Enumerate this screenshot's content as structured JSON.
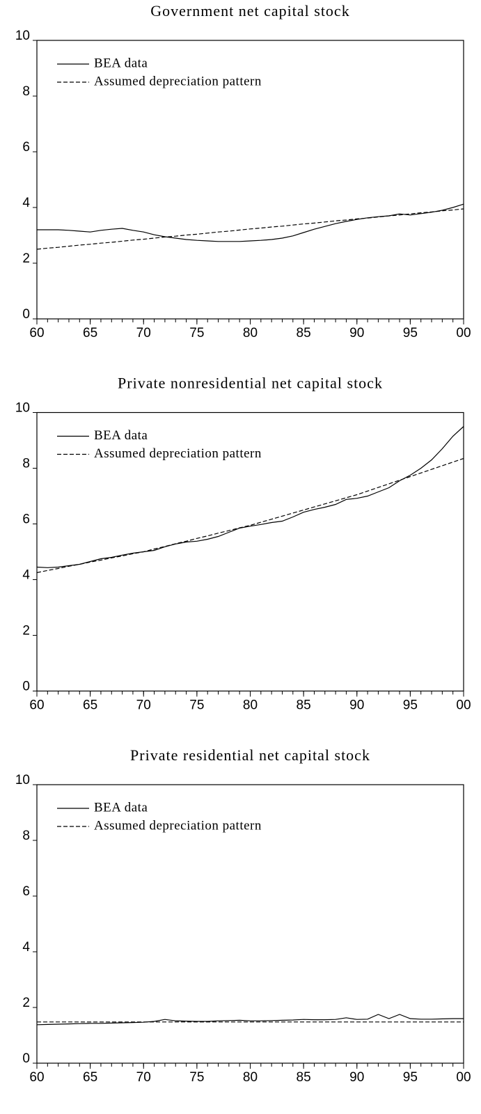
{
  "chart_data": [
    {
      "type": "line",
      "title": "Government net capital stock",
      "x": [
        1960,
        1961,
        1962,
        1963,
        1964,
        1965,
        1966,
        1967,
        1968,
        1969,
        1970,
        1971,
        1972,
        1973,
        1974,
        1975,
        1976,
        1977,
        1978,
        1979,
        1980,
        1981,
        1982,
        1983,
        1984,
        1985,
        1986,
        1987,
        1988,
        1989,
        1990,
        1991,
        1992,
        1993,
        1994,
        1995,
        1996,
        1997,
        1998,
        1999,
        2000
      ],
      "series": [
        {
          "name": "BEA data",
          "color": "#000000",
          "line_style": "solid",
          "values": [
            3.2,
            3.2,
            3.2,
            3.18,
            3.15,
            3.12,
            3.18,
            3.22,
            3.25,
            3.18,
            3.12,
            3.02,
            2.95,
            2.9,
            2.85,
            2.82,
            2.8,
            2.78,
            2.78,
            2.78,
            2.8,
            2.82,
            2.85,
            2.9,
            2.98,
            3.1,
            3.22,
            3.32,
            3.42,
            3.5,
            3.57,
            3.63,
            3.67,
            3.7,
            3.77,
            3.73,
            3.78,
            3.83,
            3.9,
            4.0,
            4.12
          ]
        },
        {
          "name": "Assumed depreciation pattern",
          "color": "#000000",
          "line_style": "dashed",
          "values": [
            2.5,
            2.54,
            2.57,
            2.61,
            2.65,
            2.68,
            2.72,
            2.75,
            2.79,
            2.83,
            2.86,
            2.9,
            2.94,
            2.97,
            3.01,
            3.04,
            3.08,
            3.12,
            3.15,
            3.19,
            3.23,
            3.26,
            3.3,
            3.33,
            3.37,
            3.41,
            3.44,
            3.48,
            3.52,
            3.55,
            3.59,
            3.62,
            3.66,
            3.7,
            3.73,
            3.77,
            3.81,
            3.84,
            3.88,
            3.91,
            3.95
          ]
        }
      ],
      "xlim": [
        1960,
        2000
      ],
      "xticks": [
        {
          "value": 1960,
          "label": "60"
        },
        {
          "value": 1965,
          "label": "65"
        },
        {
          "value": 1970,
          "label": "70"
        },
        {
          "value": 1975,
          "label": "75"
        },
        {
          "value": 1980,
          "label": "80"
        },
        {
          "value": 1985,
          "label": "85"
        },
        {
          "value": 1990,
          "label": "90"
        },
        {
          "value": 1995,
          "label": "95"
        },
        {
          "value": 2000,
          "label": "00"
        }
      ],
      "ylim": [
        0,
        10
      ],
      "yticks": [
        0,
        2,
        4,
        6,
        8,
        10
      ],
      "grid": false,
      "legend": "upper left"
    },
    {
      "type": "line",
      "title": "Private nonresidential net capital stock",
      "x": [
        1960,
        1961,
        1962,
        1963,
        1964,
        1965,
        1966,
        1967,
        1968,
        1969,
        1970,
        1971,
        1972,
        1973,
        1974,
        1975,
        1976,
        1977,
        1978,
        1979,
        1980,
        1981,
        1982,
        1983,
        1984,
        1985,
        1986,
        1987,
        1988,
        1989,
        1990,
        1991,
        1992,
        1993,
        1994,
        1995,
        1996,
        1997,
        1998,
        1999,
        2000
      ],
      "series": [
        {
          "name": "BEA data",
          "color": "#000000",
          "line_style": "solid",
          "values": [
            4.45,
            4.43,
            4.45,
            4.5,
            4.55,
            4.65,
            4.75,
            4.8,
            4.88,
            4.95,
            5.0,
            5.05,
            5.18,
            5.28,
            5.35,
            5.38,
            5.45,
            5.55,
            5.7,
            5.85,
            5.92,
            5.98,
            6.05,
            6.1,
            6.25,
            6.42,
            6.52,
            6.6,
            6.7,
            6.88,
            6.92,
            7.0,
            7.15,
            7.3,
            7.55,
            7.75,
            8.0,
            8.3,
            8.7,
            9.15,
            9.5
          ]
        },
        {
          "name": "Assumed depreciation pattern",
          "color": "#000000",
          "line_style": "dashed",
          "values": [
            4.25,
            4.33,
            4.4,
            4.48,
            4.55,
            4.63,
            4.7,
            4.78,
            4.85,
            4.93,
            5.0,
            5.1,
            5.19,
            5.29,
            5.38,
            5.48,
            5.57,
            5.67,
            5.76,
            5.86,
            5.95,
            6.06,
            6.17,
            6.28,
            6.39,
            6.5,
            6.61,
            6.72,
            6.83,
            6.94,
            7.05,
            7.18,
            7.31,
            7.44,
            7.57,
            7.7,
            7.83,
            7.96,
            8.09,
            8.22,
            8.35
          ]
        }
      ],
      "xlim": [
        1960,
        2000
      ],
      "xticks": [
        {
          "value": 1960,
          "label": "60"
        },
        {
          "value": 1965,
          "label": "65"
        },
        {
          "value": 1970,
          "label": "70"
        },
        {
          "value": 1975,
          "label": "75"
        },
        {
          "value": 1980,
          "label": "80"
        },
        {
          "value": 1985,
          "label": "85"
        },
        {
          "value": 1990,
          "label": "90"
        },
        {
          "value": 1995,
          "label": "95"
        },
        {
          "value": 2000,
          "label": "00"
        }
      ],
      "ylim": [
        0,
        10
      ],
      "yticks": [
        0,
        2,
        4,
        6,
        8,
        10
      ],
      "grid": false,
      "legend": "upper left"
    },
    {
      "type": "line",
      "title": "Private residential net capital stock",
      "x": [
        1960,
        1961,
        1962,
        1963,
        1964,
        1965,
        1966,
        1967,
        1968,
        1969,
        1970,
        1971,
        1972,
        1973,
        1974,
        1975,
        1976,
        1977,
        1978,
        1979,
        1980,
        1981,
        1982,
        1983,
        1984,
        1985,
        1986,
        1987,
        1988,
        1989,
        1990,
        1991,
        1992,
        1993,
        1994,
        1995,
        1996,
        1997,
        1998,
        1999,
        2000
      ],
      "series": [
        {
          "name": "BEA data",
          "color": "#000000",
          "line_style": "solid",
          "values": [
            1.38,
            1.39,
            1.4,
            1.41,
            1.42,
            1.43,
            1.43,
            1.44,
            1.45,
            1.46,
            1.47,
            1.5,
            1.57,
            1.52,
            1.51,
            1.5,
            1.5,
            1.52,
            1.53,
            1.54,
            1.52,
            1.52,
            1.53,
            1.54,
            1.55,
            1.57,
            1.56,
            1.56,
            1.57,
            1.63,
            1.57,
            1.58,
            1.75,
            1.6,
            1.75,
            1.6,
            1.58,
            1.58,
            1.59,
            1.6,
            1.6
          ]
        },
        {
          "name": "Assumed depreciation pattern",
          "color": "#000000",
          "line_style": "dashed",
          "values": [
            1.48,
            1.48,
            1.48,
            1.48,
            1.48,
            1.48,
            1.48,
            1.48,
            1.48,
            1.48,
            1.48,
            1.48,
            1.48,
            1.48,
            1.48,
            1.48,
            1.48,
            1.48,
            1.48,
            1.48,
            1.48,
            1.48,
            1.48,
            1.48,
            1.48,
            1.48,
            1.48,
            1.48,
            1.48,
            1.48,
            1.48,
            1.48,
            1.48,
            1.48,
            1.48,
            1.48,
            1.48,
            1.48,
            1.48,
            1.48,
            1.48
          ]
        }
      ],
      "xlim": [
        1960,
        2000
      ],
      "xticks": [
        {
          "value": 1960,
          "label": "60"
        },
        {
          "value": 1965,
          "label": "65"
        },
        {
          "value": 1970,
          "label": "70"
        },
        {
          "value": 1975,
          "label": "75"
        },
        {
          "value": 1980,
          "label": "80"
        },
        {
          "value": 1985,
          "label": "85"
        },
        {
          "value": 1990,
          "label": "90"
        },
        {
          "value": 1995,
          "label": "95"
        },
        {
          "value": 2000,
          "label": "00"
        }
      ],
      "ylim": [
        0,
        10
      ],
      "yticks": [
        0,
        2,
        4,
        6,
        8,
        10
      ],
      "grid": false,
      "legend": "upper left"
    }
  ]
}
